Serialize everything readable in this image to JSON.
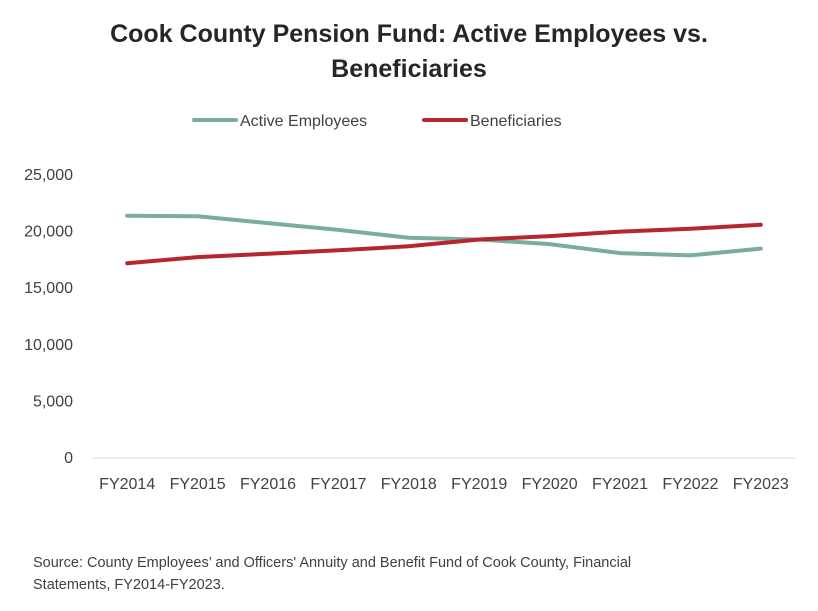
{
  "chart_data": {
    "type": "line",
    "title_lines": [
      "Cook County Pension Fund: Active Employees vs.",
      "Beneficiaries"
    ],
    "categories": [
      "FY2014",
      "FY2015",
      "FY2016",
      "FY2017",
      "FY2018",
      "FY2019",
      "FY2020",
      "FY2021",
      "FY2022",
      "FY2023"
    ],
    "series": [
      {
        "name": "Active Employees",
        "color": "#7aada0",
        "values": [
          21400,
          21350,
          20750,
          20150,
          19450,
          19300,
          18900,
          18100,
          17900,
          18500
        ]
      },
      {
        "name": "Beneficiaries",
        "color": "#b5272d",
        "values": [
          17200,
          17750,
          18050,
          18350,
          18700,
          19300,
          19600,
          20000,
          20250,
          20600
        ]
      }
    ],
    "ylim": [
      0,
      25000
    ],
    "yticks": [
      "25,000",
      "20,000",
      "15,000",
      "10,000",
      "5,000",
      "0"
    ],
    "ytick_values": [
      25000,
      20000,
      15000,
      10000,
      5000,
      0
    ],
    "grid": false,
    "legend_position": "top-center",
    "source_lines": [
      "Source: County Employees’ and Officers' Annuity and Benefit Fund of Cook County, Financial",
      "Statements, FY2014-FY2023."
    ],
    "axis_color": "#d9d9d9"
  }
}
